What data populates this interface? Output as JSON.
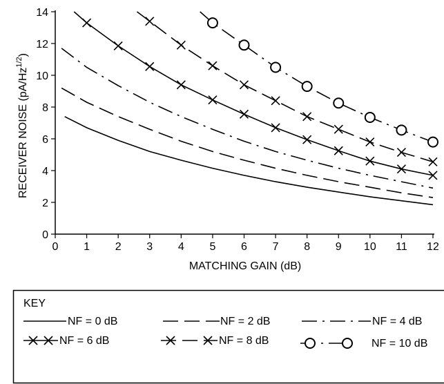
{
  "chart_data": {
    "type": "line",
    "xlabel": "MATCHING GAIN (dB)",
    "ylabel": "RECEIVER NOISE (pA/Hz",
    "ylabel_sup": "1/2",
    "ylabel_close": ")",
    "xlim": [
      0,
      12
    ],
    "ylim": [
      0,
      14
    ],
    "x_ticks": [
      "0",
      "1",
      "2",
      "3",
      "4",
      "5",
      "6",
      "7",
      "8",
      "9",
      "10",
      "11",
      "12"
    ],
    "y_ticks": [
      "0",
      "2",
      "4",
      "6",
      "8",
      "10",
      "12",
      "14"
    ],
    "grid": false,
    "key_title": "KEY",
    "series": [
      {
        "name": "NF = 0 dB",
        "style": "solid",
        "marker": "none",
        "x": [
          0.3,
          1,
          2,
          3,
          4,
          5,
          6,
          7,
          8,
          9,
          10,
          11,
          12
        ],
        "y": [
          7.4,
          6.7,
          5.9,
          5.2,
          4.65,
          4.15,
          3.7,
          3.3,
          2.95,
          2.65,
          2.35,
          2.1,
          1.85
        ]
      },
      {
        "name": "NF = 2 dB",
        "style": "dashed",
        "marker": "none",
        "x": [
          0.2,
          1,
          2,
          3,
          4,
          5,
          6,
          7,
          8,
          9,
          10,
          11,
          12
        ],
        "y": [
          9.2,
          8.3,
          7.4,
          6.6,
          5.85,
          5.2,
          4.65,
          4.15,
          3.7,
          3.3,
          2.95,
          2.6,
          2.3
        ]
      },
      {
        "name": "NF = 4 dB",
        "style": "dashdot",
        "marker": "none",
        "x": [
          0.2,
          1,
          2,
          3,
          4,
          5,
          6,
          7,
          8,
          9,
          10,
          11,
          12
        ],
        "y": [
          11.7,
          10.5,
          9.35,
          8.3,
          7.4,
          6.6,
          5.85,
          5.2,
          4.65,
          4.15,
          3.7,
          3.3,
          2.9
        ]
      },
      {
        "name": "NF = 6 dB",
        "style": "solid",
        "marker": "x",
        "x": [
          0.6,
          1,
          2,
          3,
          4,
          5,
          6,
          7,
          8,
          9,
          10,
          11,
          12
        ],
        "y": [
          14.0,
          13.3,
          11.85,
          10.55,
          9.4,
          8.45,
          7.55,
          6.7,
          5.95,
          5.25,
          4.6,
          4.1,
          3.7
        ]
      },
      {
        "name": "NF = 8 dB",
        "style": "dashed",
        "marker": "x",
        "x": [
          2.6,
          3,
          4,
          5,
          6,
          7,
          8,
          9,
          10,
          11,
          12
        ],
        "y": [
          14.0,
          13.4,
          11.9,
          10.6,
          9.4,
          8.4,
          7.4,
          6.6,
          5.8,
          5.15,
          4.55
        ]
      },
      {
        "name": "NF = 10 dB",
        "style": "dashdot",
        "marker": "circle",
        "x": [
          4.6,
          5,
          6,
          7,
          8,
          9,
          10,
          11,
          12
        ],
        "y": [
          14.0,
          13.3,
          11.9,
          10.5,
          9.3,
          8.25,
          7.35,
          6.55,
          5.8
        ]
      }
    ]
  },
  "colors": {
    "ink": "#000000",
    "background": "#ffffff"
  }
}
